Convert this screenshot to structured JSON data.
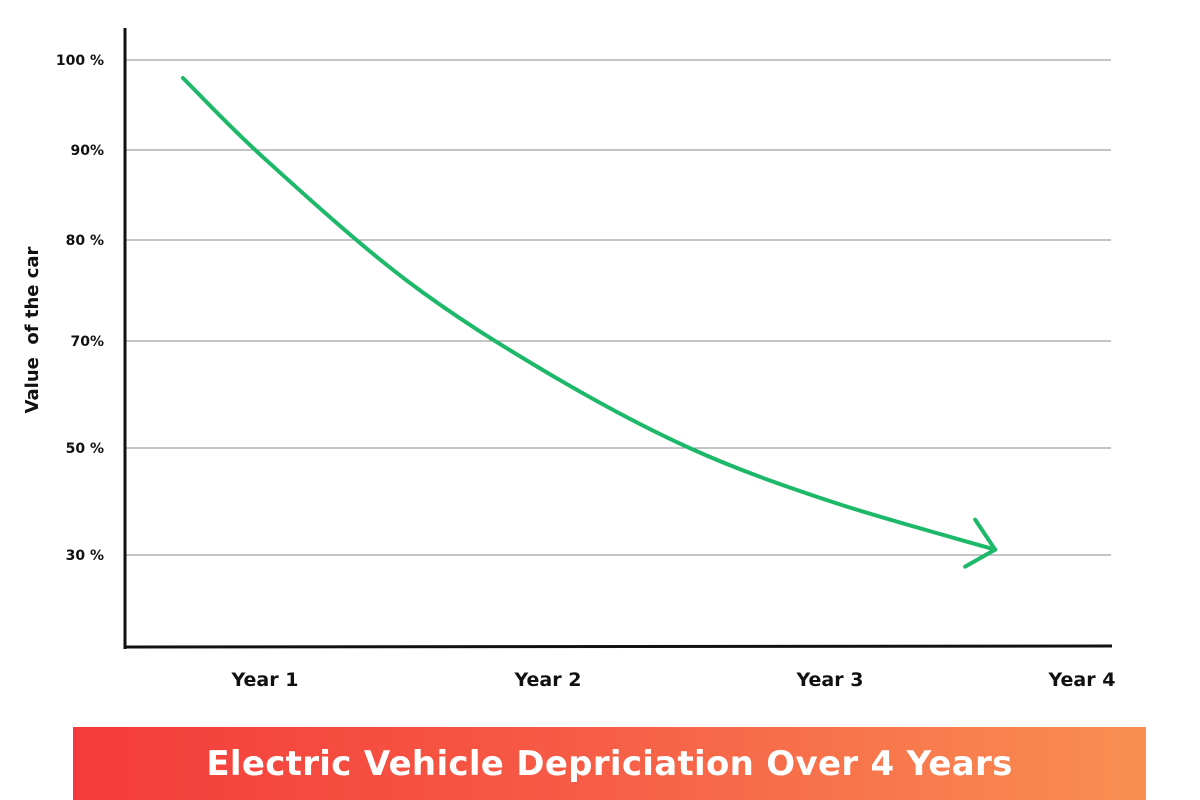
{
  "chart_data": {
    "type": "line",
    "title": "Electric Vehicle Depriciation Over 4 Years",
    "xlabel": "",
    "ylabel": "Value  of the car",
    "x_tick_labels": [
      "Year 1",
      "Year 2",
      "Year 3",
      "Year 4"
    ],
    "x_ticks": [
      1,
      2,
      3,
      4
    ],
    "y_tick_labels": [
      "100 %",
      "90%",
      "80 %",
      "70%",
      "50 %",
      "30 %"
    ],
    "y_ticks": [
      100,
      90,
      80,
      70,
      50,
      30
    ],
    "grid": true,
    "line_color": "#1db86a",
    "end_marker": "arrow",
    "series": [
      {
        "x": [
          0.71,
          1,
          1.5,
          2,
          2.5,
          3,
          3.58
        ],
        "y": [
          98,
          89,
          76,
          64,
          50,
          40,
          31
        ]
      }
    ]
  },
  "colors": {
    "banner_start": "#f43b3b",
    "banner_end": "#f98f52"
  }
}
